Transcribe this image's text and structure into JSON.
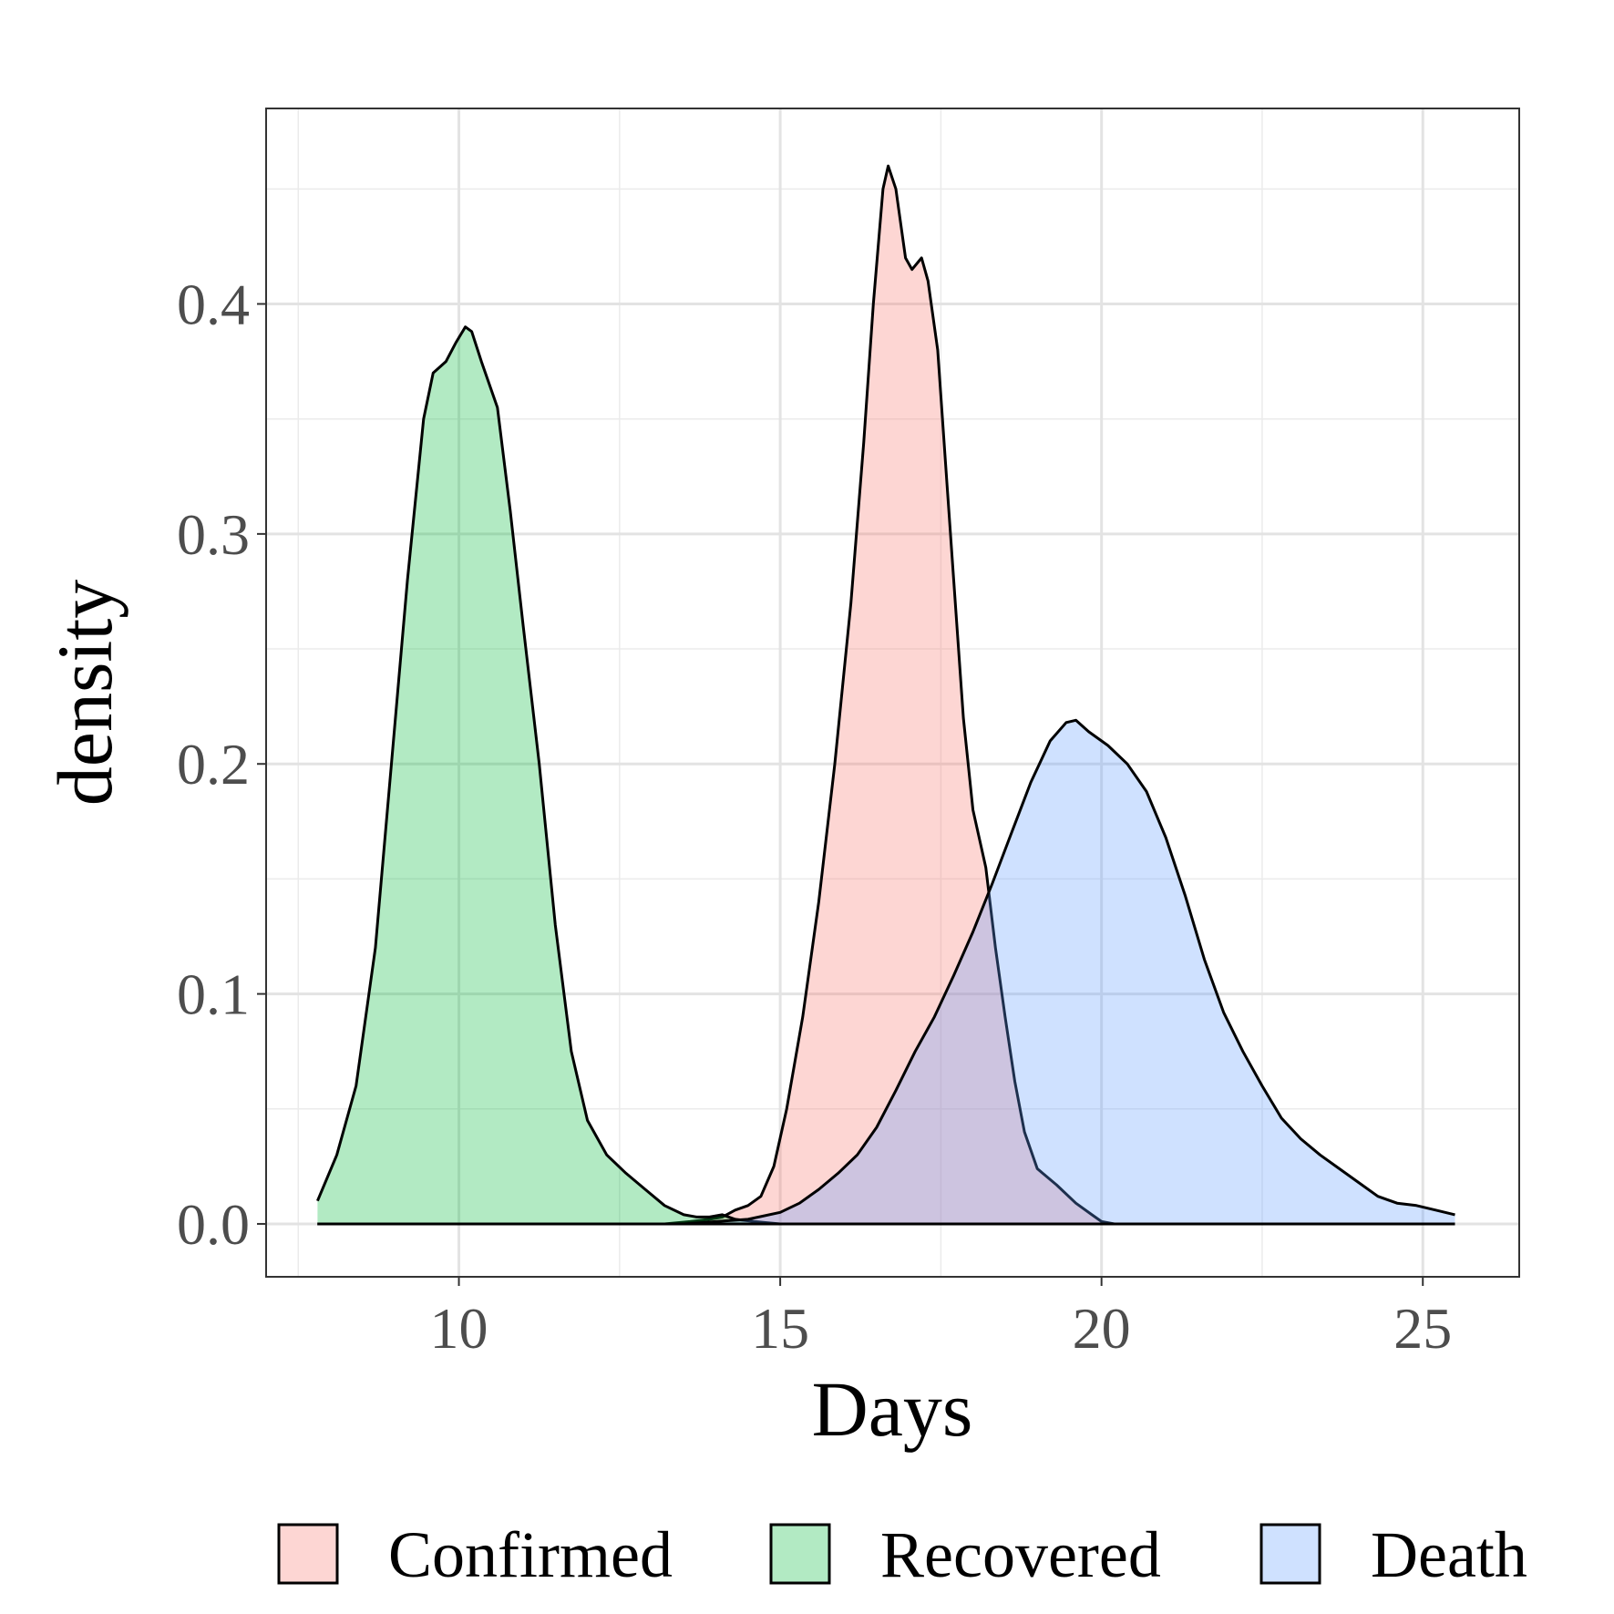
{
  "chart_data": {
    "type": "area",
    "title": "",
    "xlabel": "Days",
    "ylabel": "density",
    "xlim": [
      7.0,
      26.5
    ],
    "ylim": [
      -0.023,
      0.485
    ],
    "x_ticks": [
      10,
      15,
      20,
      25
    ],
    "x_tick_labels": [
      "10",
      "15",
      "20",
      "25"
    ],
    "y_ticks": [
      0.0,
      0.1,
      0.2,
      0.3,
      0.4
    ],
    "y_tick_labels": [
      "0.0",
      "0.1",
      "0.2",
      "0.3",
      "0.4"
    ],
    "grid": true,
    "legend_position": "bottom",
    "series": [
      {
        "name": "Confirmed",
        "color": "#f8766d",
        "points": [
          [
            7.8,
            0
          ],
          [
            13.2,
            0
          ],
          [
            13.6,
            0.001
          ],
          [
            13.9,
            0.002
          ],
          [
            14.1,
            0.003
          ],
          [
            14.3,
            0.006
          ],
          [
            14.5,
            0.008
          ],
          [
            14.7,
            0.012
          ],
          [
            14.9,
            0.025
          ],
          [
            15.1,
            0.05
          ],
          [
            15.35,
            0.09
          ],
          [
            15.6,
            0.14
          ],
          [
            15.85,
            0.2
          ],
          [
            16.1,
            0.27
          ],
          [
            16.3,
            0.34
          ],
          [
            16.45,
            0.4
          ],
          [
            16.6,
            0.45
          ],
          [
            16.68,
            0.46
          ],
          [
            16.8,
            0.45
          ],
          [
            16.95,
            0.42
          ],
          [
            17.05,
            0.415
          ],
          [
            17.2,
            0.42
          ],
          [
            17.3,
            0.41
          ],
          [
            17.45,
            0.38
          ],
          [
            17.6,
            0.32
          ],
          [
            17.75,
            0.26
          ],
          [
            17.85,
            0.22
          ],
          [
            18.0,
            0.18
          ],
          [
            18.2,
            0.155
          ],
          [
            18.35,
            0.12
          ],
          [
            18.5,
            0.09
          ],
          [
            18.65,
            0.062
          ],
          [
            18.8,
            0.04
          ],
          [
            19.0,
            0.024
          ],
          [
            19.3,
            0.017
          ],
          [
            19.6,
            0.009
          ],
          [
            19.85,
            0.004
          ],
          [
            20.0,
            0.001
          ],
          [
            20.2,
            0
          ],
          [
            25.5,
            0
          ]
        ]
      },
      {
        "name": "Recovered",
        "color": "#00ba38",
        "points": [
          [
            7.8,
            0.01
          ],
          [
            8.1,
            0.03
          ],
          [
            8.4,
            0.06
          ],
          [
            8.7,
            0.12
          ],
          [
            8.95,
            0.2
          ],
          [
            9.2,
            0.28
          ],
          [
            9.45,
            0.35
          ],
          [
            9.6,
            0.37
          ],
          [
            9.8,
            0.375
          ],
          [
            9.95,
            0.383
          ],
          [
            10.1,
            0.39
          ],
          [
            10.2,
            0.388
          ],
          [
            10.35,
            0.375
          ],
          [
            10.6,
            0.355
          ],
          [
            10.8,
            0.31
          ],
          [
            11.0,
            0.26
          ],
          [
            11.25,
            0.2
          ],
          [
            11.5,
            0.13
          ],
          [
            11.75,
            0.075
          ],
          [
            12.0,
            0.045
          ],
          [
            12.3,
            0.03
          ],
          [
            12.6,
            0.022
          ],
          [
            12.9,
            0.015
          ],
          [
            13.2,
            0.008
          ],
          [
            13.5,
            0.004
          ],
          [
            13.7,
            0.003
          ],
          [
            13.9,
            0.003
          ],
          [
            14.1,
            0.004
          ],
          [
            14.3,
            0.002
          ],
          [
            14.6,
            0.001
          ],
          [
            15.0,
            0
          ],
          [
            25.5,
            0
          ]
        ]
      },
      {
        "name": "Death",
        "color": "#619cff",
        "points": [
          [
            7.8,
            0
          ],
          [
            13.5,
            0
          ],
          [
            14.0,
            0.001
          ],
          [
            14.5,
            0.002
          ],
          [
            15.0,
            0.005
          ],
          [
            15.3,
            0.009
          ],
          [
            15.6,
            0.015
          ],
          [
            15.9,
            0.022
          ],
          [
            16.2,
            0.03
          ],
          [
            16.5,
            0.042
          ],
          [
            16.8,
            0.058
          ],
          [
            17.1,
            0.075
          ],
          [
            17.4,
            0.09
          ],
          [
            17.7,
            0.108
          ],
          [
            18.0,
            0.127
          ],
          [
            18.3,
            0.148
          ],
          [
            18.6,
            0.17
          ],
          [
            18.9,
            0.192
          ],
          [
            19.2,
            0.21
          ],
          [
            19.45,
            0.218
          ],
          [
            19.6,
            0.219
          ],
          [
            19.8,
            0.214
          ],
          [
            20.1,
            0.208
          ],
          [
            20.4,
            0.2
          ],
          [
            20.7,
            0.188
          ],
          [
            21.0,
            0.168
          ],
          [
            21.3,
            0.143
          ],
          [
            21.6,
            0.115
          ],
          [
            21.9,
            0.092
          ],
          [
            22.2,
            0.075
          ],
          [
            22.5,
            0.06
          ],
          [
            22.8,
            0.046
          ],
          [
            23.1,
            0.037
          ],
          [
            23.4,
            0.03
          ],
          [
            23.7,
            0.024
          ],
          [
            24.0,
            0.018
          ],
          [
            24.3,
            0.012
          ],
          [
            24.6,
            0.009
          ],
          [
            24.9,
            0.008
          ],
          [
            25.2,
            0.006
          ],
          [
            25.5,
            0.004
          ]
        ]
      }
    ]
  }
}
